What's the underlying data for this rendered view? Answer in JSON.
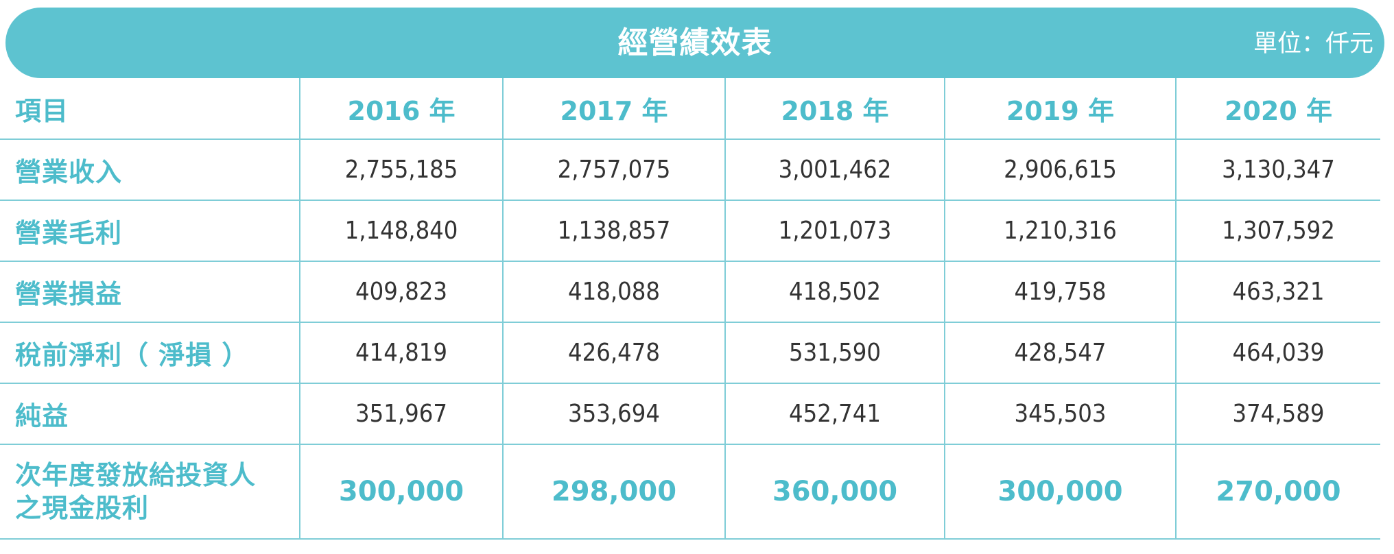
{
  "banner": {
    "title": "經營績效表",
    "unit": "單位：仟元"
  },
  "table": {
    "header": {
      "label": "項目",
      "years": [
        "2016 年",
        "2017 年",
        "2018 年",
        "2019 年",
        "2020 年"
      ]
    },
    "rows": [
      {
        "label": "營業收入",
        "values": [
          "2,755,185",
          "2,757,075",
          "3,001,462",
          "2,906,615",
          "3,130,347"
        ]
      },
      {
        "label": "營業毛利",
        "values": [
          "1,148,840",
          "1,138,857",
          "1,201,073",
          "1,210,316",
          "1,307,592"
        ]
      },
      {
        "label": "營業損益",
        "values": [
          "409,823",
          "418,088",
          "418,502",
          "419,758",
          "463,321"
        ]
      },
      {
        "label": "稅前淨利（ 淨損 ）",
        "values": [
          "414,819",
          "426,478",
          "531,590",
          "428,547",
          "464,039"
        ]
      },
      {
        "label": "純益",
        "values": [
          "351,967",
          "353,694",
          "452,741",
          "345,503",
          "374,589"
        ]
      }
    ],
    "dividend": {
      "label_line1": "次年度發放給投資人",
      "label_line2": "之現金股利",
      "values": [
        "300,000",
        "298,000",
        "360,000",
        "300,000",
        "270,000"
      ]
    }
  },
  "colors": {
    "accent": "#5dc3d0",
    "label_text": "#4dbccb",
    "value_text": "#333333",
    "grid_line": "#7fcdd7"
  }
}
